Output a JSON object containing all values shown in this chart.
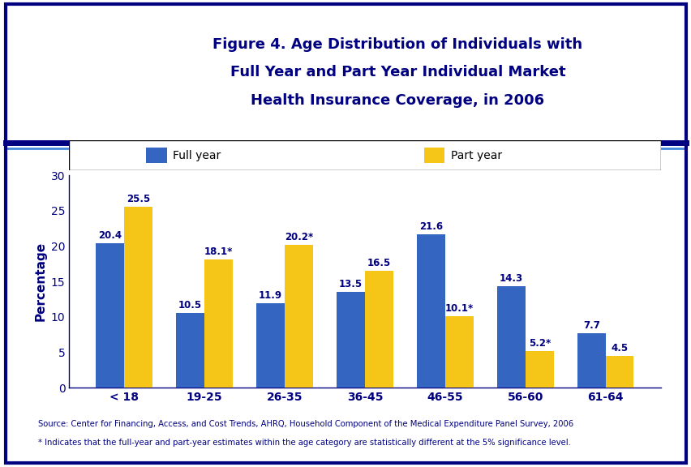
{
  "categories": [
    "< 18",
    "19-25",
    "26-35",
    "36-45",
    "46-55",
    "56-60",
    "61-64"
  ],
  "full_year": [
    20.4,
    10.5,
    11.9,
    13.5,
    21.6,
    14.3,
    7.7
  ],
  "part_year": [
    25.5,
    18.1,
    20.2,
    16.5,
    10.1,
    5.2,
    4.5
  ],
  "full_year_labels": [
    "20.4",
    "10.5",
    "11.9",
    "13.5",
    "21.6",
    "14.3",
    "7.7"
  ],
  "part_year_labels": [
    "25.5",
    "18.1*",
    "20.2*",
    "16.5",
    "10.1*",
    "5.2*",
    "4.5"
  ],
  "full_year_color": "#3465C0",
  "part_year_color": "#F5C518",
  "ylabel": "Percentage",
  "ylim": [
    0,
    30
  ],
  "yticks": [
    0,
    5,
    10,
    15,
    20,
    25,
    30
  ],
  "title_line1": "Figure 4. Age Distribution of Individuals with",
  "title_line2": "Full Year and Part Year Individual Market",
  "title_line3": "Health Insurance Coverage, in 2006",
  "legend_full": "Full year",
  "legend_part": "Part year",
  "source_text": "Source: Center for Financing, Access, and Cost Trends, AHRQ, Household Component of the Medical Expenditure Panel Survey, 2006",
  "footnote_text": "* Indicates that the full-year and part-year estimates within the age category are statistically different at the 5% significance level.",
  "bar_width": 0.35,
  "outer_border_color": "#000080",
  "title_color": "#000080",
  "label_color": "#000080",
  "source_color": "#000080",
  "divider_color1": "#000080",
  "divider_color2": "#4488DD",
  "axis_spine_color": "#000080",
  "tick_label_color": "#000080"
}
